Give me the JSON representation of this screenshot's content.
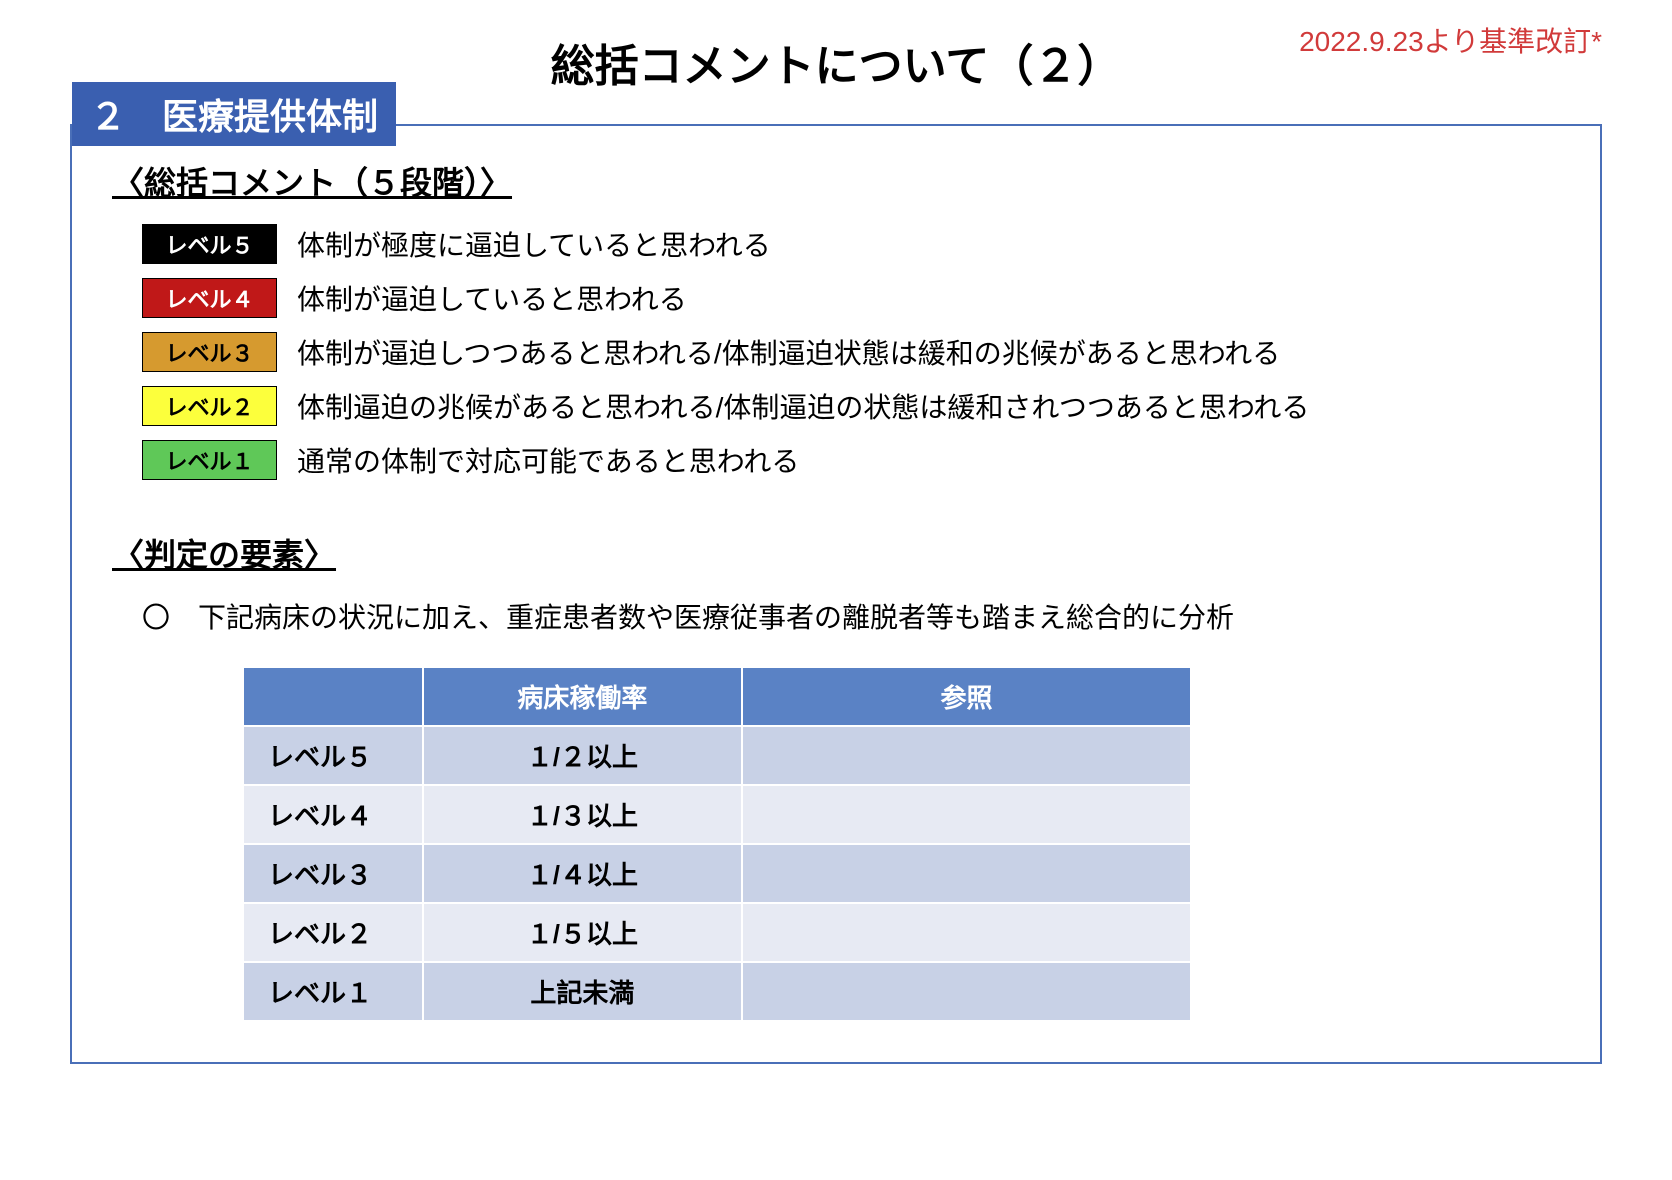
{
  "header": {
    "title": "総括コメントについて（２）",
    "revision_note": "2022.9.23より基準改訂*"
  },
  "section": {
    "number_title": "２　医療提供体制",
    "comment_heading": "〈総括コメント（５段階）〉",
    "criteria_heading": "〈判定の要素〉",
    "criteria_note": "〇　下記病床の状況に加え、重症患者数や医療従事者の離脱者等も踏まえ総合的に分析"
  },
  "levels": [
    {
      "label": "レベル５",
      "desc": "体制が極度に逼迫していると思われる",
      "bg": "#000000",
      "fg": "#ffffff",
      "border": "#000000"
    },
    {
      "label": "レベル４",
      "desc": "体制が逼迫していると思われる",
      "bg": "#c01818",
      "fg": "#ffffff",
      "border": "#000000"
    },
    {
      "label": "レベル３",
      "desc": "体制が逼迫しつつあると思われる/体制逼迫状態は緩和の兆候があると思われる",
      "bg": "#d69a2f",
      "fg": "#000000",
      "border": "#000000"
    },
    {
      "label": "レベル２",
      "desc": "体制逼迫の兆候があると思われる/体制逼迫の状態は緩和されつつあると思われる",
      "bg": "#fcff3c",
      "fg": "#000000",
      "border": "#000000"
    },
    {
      "label": "レベル１",
      "desc": "通常の体制で対応可能であると思われる",
      "bg": "#5fc858",
      "fg": "#000000",
      "border": "#000000"
    }
  ],
  "table": {
    "columns": [
      "",
      "病床稼働率",
      "参照"
    ],
    "rows": [
      {
        "label": "レベル５",
        "rate": "１/２以上",
        "ref": "",
        "shade": "dark"
      },
      {
        "label": "レベル４",
        "rate": "１/３以上",
        "ref": "",
        "shade": "light"
      },
      {
        "label": "レベル３",
        "rate": "１/４以上",
        "ref": "",
        "shade": "dark"
      },
      {
        "label": "レベル２",
        "rate": "１/５以上",
        "ref": "",
        "shade": "light"
      },
      {
        "label": "レベル１",
        "rate": "上記未満",
        "ref": "",
        "shade": "dark"
      }
    ],
    "header_bg": "#5a82c5",
    "header_fg": "#ffffff",
    "row_dark_bg": "#c8d1e6",
    "row_light_bg": "#e7eaf3"
  },
  "colors": {
    "section_border": "#4a6fb8",
    "section_header_bg": "#3a5fb0",
    "revision_text": "#d13a3a"
  }
}
